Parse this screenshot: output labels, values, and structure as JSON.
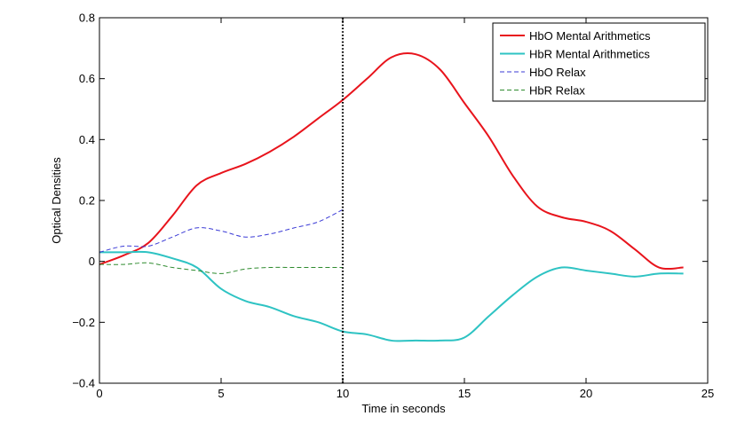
{
  "chart_data": {
    "type": "line",
    "title": "",
    "xlabel": "Time in seconds",
    "ylabel": "Optical Densities",
    "xlim": [
      0,
      25
    ],
    "ylim": [
      -0.4,
      0.8
    ],
    "xticks": [
      0,
      5,
      10,
      15,
      20,
      25
    ],
    "xtick_labels": [
      "0",
      "5",
      "10",
      "15",
      "20",
      "25"
    ],
    "yticks": [
      -0.4,
      -0.2,
      0,
      0.2,
      0.4,
      0.6,
      0.8
    ],
    "ytick_labels": [
      "−0.4",
      "−0.2",
      "0",
      "0.2",
      "0.4",
      "0.6",
      "0.8"
    ],
    "grid": false,
    "legend_position": "top-right",
    "vertical_marker": {
      "x": 10,
      "style": "dotted",
      "color": "#000000"
    },
    "series": [
      {
        "name": "HbO Mental Arithmetics",
        "color": "#e8141c",
        "style": "solid",
        "x": [
          0,
          1,
          2,
          3,
          4,
          5,
          6,
          7,
          8,
          9,
          10,
          11,
          12,
          13,
          14,
          15,
          16,
          17,
          18,
          19,
          20,
          21,
          22,
          23,
          24
        ],
        "y": [
          -0.01,
          0.02,
          0.06,
          0.15,
          0.25,
          0.29,
          0.32,
          0.36,
          0.41,
          0.47,
          0.53,
          0.6,
          0.67,
          0.68,
          0.63,
          0.52,
          0.41,
          0.28,
          0.18,
          0.145,
          0.13,
          0.1,
          0.04,
          -0.02,
          -0.02
        ]
      },
      {
        "name": "HbR Mental Arithmetics",
        "color": "#2ec3c3",
        "style": "solid",
        "x": [
          0,
          1,
          2,
          3,
          4,
          5,
          6,
          7,
          8,
          9,
          10,
          11,
          12,
          13,
          14,
          15,
          16,
          17,
          18,
          19,
          20,
          21,
          22,
          23,
          24
        ],
        "y": [
          0.03,
          0.03,
          0.03,
          0.01,
          -0.02,
          -0.09,
          -0.13,
          -0.15,
          -0.18,
          -0.2,
          -0.23,
          -0.24,
          -0.26,
          -0.26,
          -0.26,
          -0.25,
          -0.18,
          -0.11,
          -0.05,
          -0.02,
          -0.03,
          -0.04,
          -0.05,
          -0.04,
          -0.04
        ]
      },
      {
        "name": "HbO Relax",
        "color": "#3b3bd6",
        "style": "dashed",
        "x": [
          0,
          1,
          2,
          3,
          4,
          5,
          6,
          7,
          8,
          9,
          10
        ],
        "y": [
          0.03,
          0.05,
          0.05,
          0.08,
          0.11,
          0.1,
          0.08,
          0.09,
          0.11,
          0.13,
          0.17
        ]
      },
      {
        "name": "HbR Relax",
        "color": "#2e8b2e",
        "style": "dashed",
        "x": [
          0,
          1,
          2,
          3,
          4,
          5,
          6,
          7,
          8,
          9,
          10
        ],
        "y": [
          -0.01,
          -0.01,
          -0.005,
          -0.02,
          -0.03,
          -0.04,
          -0.025,
          -0.02,
          -0.02,
          -0.02,
          -0.02
        ]
      }
    ]
  }
}
